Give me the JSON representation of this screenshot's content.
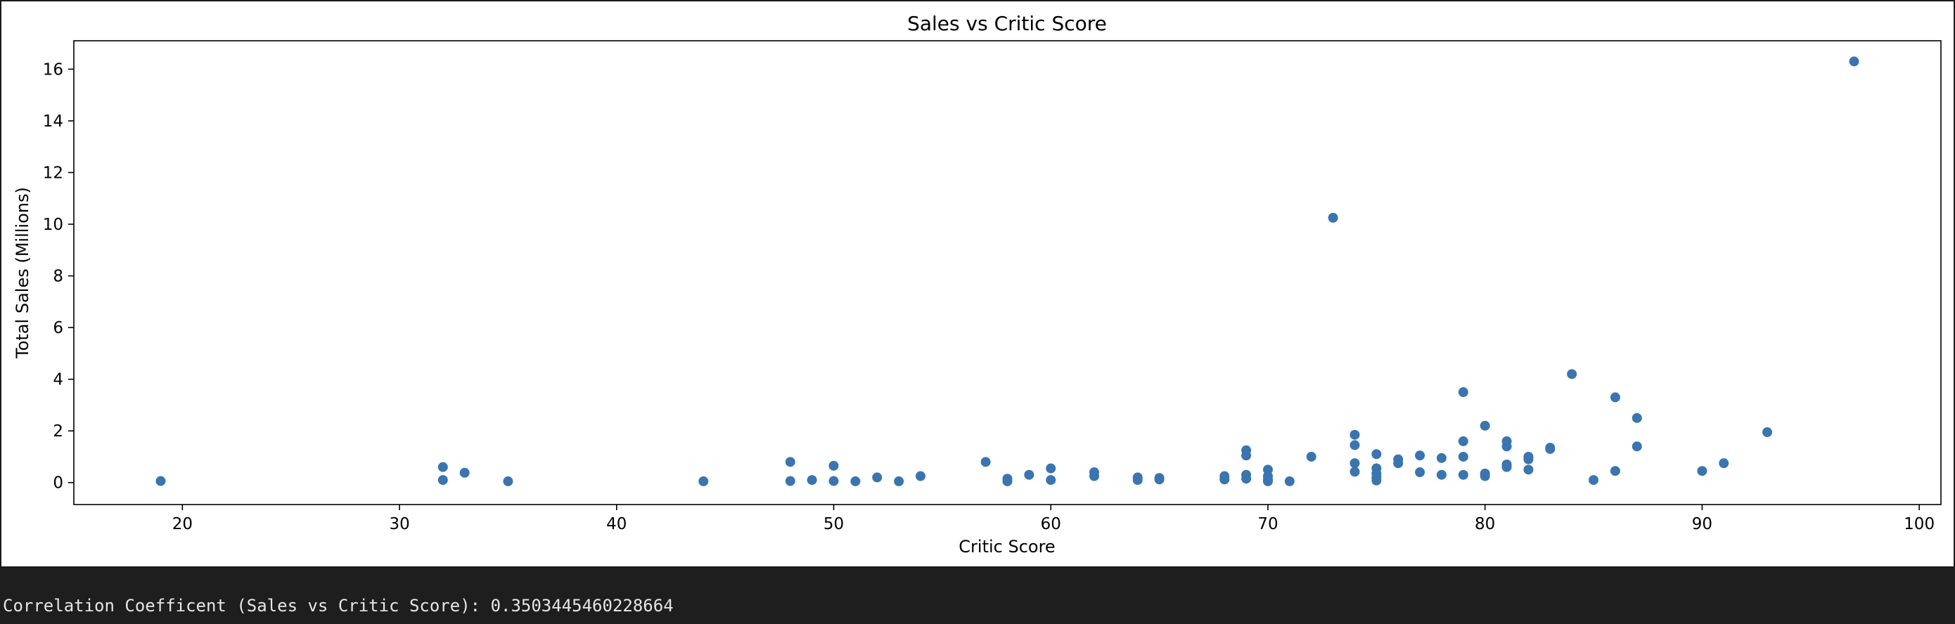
{
  "chart_data": {
    "type": "scatter",
    "title": "Sales vs Critic Score",
    "xlabel": "Critic Score",
    "ylabel": "Total Sales (Millions)",
    "xlim": [
      15,
      101
    ],
    "ylim": [
      -0.85,
      17.1
    ],
    "xticks": [
      20,
      30,
      40,
      50,
      60,
      70,
      80,
      90,
      100
    ],
    "yticks": [
      0,
      2,
      4,
      6,
      8,
      10,
      12,
      14,
      16
    ],
    "grid": false,
    "color": "#3a75af",
    "points": [
      [
        19,
        0.06
      ],
      [
        32,
        0.6
      ],
      [
        32,
        0.1
      ],
      [
        33,
        0.38
      ],
      [
        35,
        0.05
      ],
      [
        44,
        0.05
      ],
      [
        48,
        0.8
      ],
      [
        48,
        0.06
      ],
      [
        49,
        0.1
      ],
      [
        50,
        0.65
      ],
      [
        50,
        0.06
      ],
      [
        51,
        0.05
      ],
      [
        52,
        0.2
      ],
      [
        53,
        0.05
      ],
      [
        54,
        0.25
      ],
      [
        57,
        0.8
      ],
      [
        58,
        0.15
      ],
      [
        58,
        0.05
      ],
      [
        59,
        0.3
      ],
      [
        60,
        0.55
      ],
      [
        60,
        0.1
      ],
      [
        62,
        0.4
      ],
      [
        62,
        0.25
      ],
      [
        64,
        0.2
      ],
      [
        64,
        0.1
      ],
      [
        65,
        0.18
      ],
      [
        65,
        0.12
      ],
      [
        68,
        0.25
      ],
      [
        68,
        0.12
      ],
      [
        69,
        1.25
      ],
      [
        69,
        1.05
      ],
      [
        69,
        0.3
      ],
      [
        69,
        0.15
      ],
      [
        70,
        0.5
      ],
      [
        70,
        0.25
      ],
      [
        70,
        0.12
      ],
      [
        70,
        0.05
      ],
      [
        71,
        0.05
      ],
      [
        72,
        1.0
      ],
      [
        73,
        10.25
      ],
      [
        74,
        1.85
      ],
      [
        74,
        1.45
      ],
      [
        74,
        0.75
      ],
      [
        74,
        0.42
      ],
      [
        75,
        1.1
      ],
      [
        75,
        0.55
      ],
      [
        75,
        0.35
      ],
      [
        75,
        0.2
      ],
      [
        75,
        0.08
      ],
      [
        76,
        0.9
      ],
      [
        76,
        0.75
      ],
      [
        77,
        1.05
      ],
      [
        77,
        0.4
      ],
      [
        78,
        0.95
      ],
      [
        78,
        0.3
      ],
      [
        79,
        3.5
      ],
      [
        79,
        1.6
      ],
      [
        79,
        1.0
      ],
      [
        79,
        0.3
      ],
      [
        80,
        2.2
      ],
      [
        80,
        0.35
      ],
      [
        80,
        0.25
      ],
      [
        81,
        1.6
      ],
      [
        81,
        1.4
      ],
      [
        81,
        0.7
      ],
      [
        81,
        0.6
      ],
      [
        82,
        1.0
      ],
      [
        82,
        0.9
      ],
      [
        82,
        0.5
      ],
      [
        83,
        1.35
      ],
      [
        83,
        1.3
      ],
      [
        84,
        4.2
      ],
      [
        85,
        0.1
      ],
      [
        86,
        3.3
      ],
      [
        86,
        0.45
      ],
      [
        87,
        2.5
      ],
      [
        87,
        1.4
      ],
      [
        90,
        0.45
      ],
      [
        91,
        0.75
      ],
      [
        93,
        1.95
      ],
      [
        97,
        16.3
      ]
    ]
  },
  "output": {
    "text": "Correlation Coefficent (Sales vs Critic Score): 0.3503445460228664"
  }
}
